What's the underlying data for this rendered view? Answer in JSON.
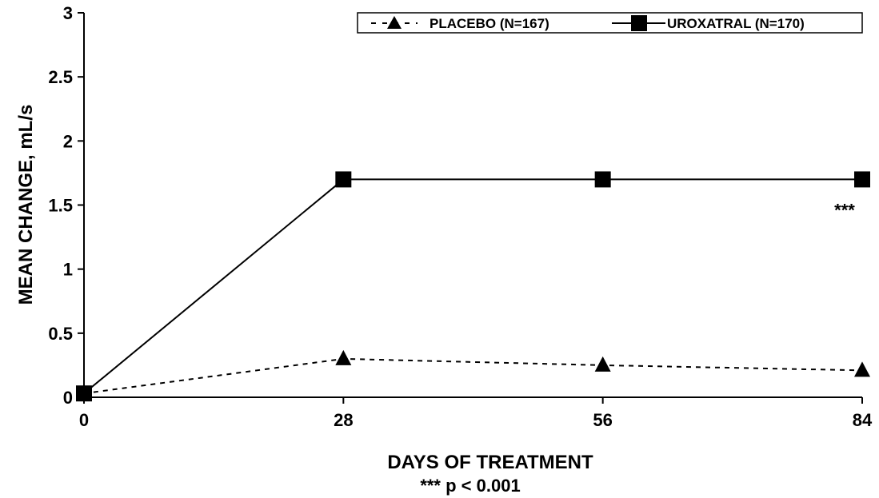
{
  "chart_data": {
    "type": "line",
    "xlabel": "DAYS OF TREATMENT",
    "ylabel": "MEAN CHANGE, mL/s",
    "footnote": "*** p < 0.001",
    "x": [
      0,
      28,
      56,
      84
    ],
    "x_ticks": [
      "0",
      "28",
      "56",
      "84"
    ],
    "ylim": [
      0,
      3
    ],
    "xlim": [
      0,
      84
    ],
    "y_ticks": [
      "0",
      "0.5",
      "1",
      "1.5",
      "2",
      "2.5",
      "3"
    ],
    "grid": false,
    "legend_position": "top-right",
    "series": [
      {
        "name": "PLACEBO (N=167)",
        "values": [
          0.03,
          0.3,
          0.25,
          0.21
        ],
        "marker": "triangle",
        "line_style": "dashed",
        "color": "#000000"
      },
      {
        "name": "UROXATRAL (N=170)",
        "values": [
          0.03,
          1.7,
          1.7,
          1.7
        ],
        "marker": "square",
        "line_style": "solid",
        "color": "#000000"
      }
    ],
    "annotations": [
      {
        "text": "***",
        "x": 84,
        "series": "UROXATRAL (N=170)"
      }
    ]
  }
}
